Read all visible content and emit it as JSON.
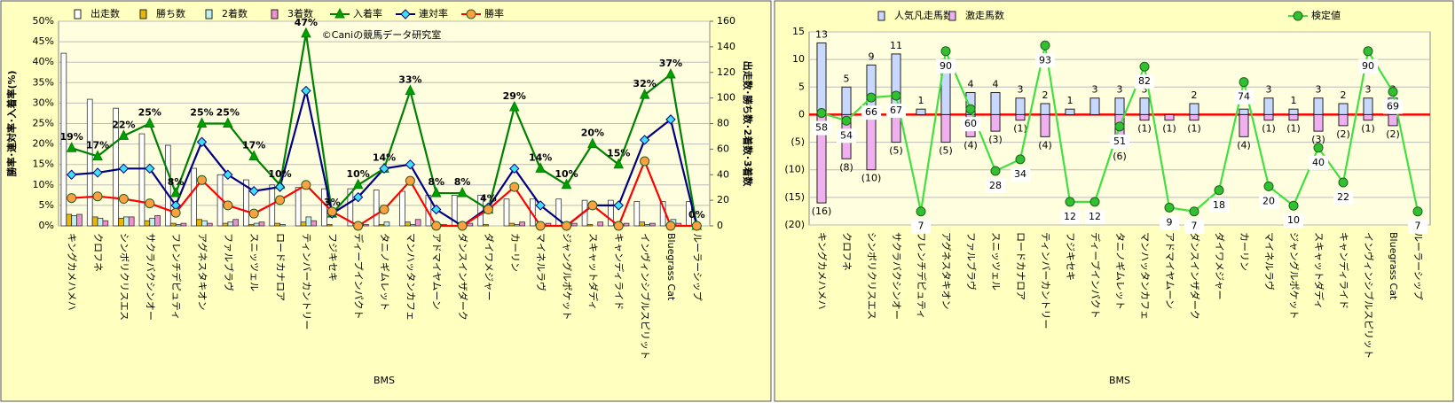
{
  "chart_data": [
    {
      "type": "combo",
      "watermark": "©Caniの競馬データ研究室",
      "x_label": "BMS",
      "y_label": "勝率･連対率･入着率(%)",
      "y2_label": "出走数･勝ち数･2着数･3着数",
      "categories": [
        "キングカメハメハ",
        "クロフネ",
        "シンボリクリスエス",
        "サクラバクシンオー",
        "フレンチデピュティ",
        "アグネスタキオン",
        "ファルブラヴ",
        "スニッツェル",
        "ロードカナロア",
        "ティンバーカントリー",
        "フジキセキ",
        "ディープインパクト",
        "タニノギムレット",
        "マンハッタンカフェ",
        "アドマイヤムーン",
        "ダンスインザダーク",
        "ダイワメジャー",
        "カーリン",
        "マイネルラヴ",
        "ジャングルポケット",
        "スキャットダディ",
        "キャンディライド",
        "インヴィンシブルスピリット",
        "Bluegrass Cat",
        "ルーラーシップ"
      ],
      "ylim": [
        0,
        50
      ],
      "yticks": [
        {
          "value": 0,
          "label": "0%"
        },
        {
          "value": 5,
          "label": "5%"
        },
        {
          "value": 10,
          "label": "10%"
        },
        {
          "value": 15,
          "label": "15%"
        },
        {
          "value": 20,
          "label": "20%"
        },
        {
          "value": 25,
          "label": "25%"
        },
        {
          "value": 30,
          "label": "30%"
        },
        {
          "value": 35,
          "label": "35%"
        },
        {
          "value": 40,
          "label": "40%"
        },
        {
          "value": 45,
          "label": "45%"
        },
        {
          "value": 50,
          "label": "50%"
        }
      ],
      "y2lim": [
        0,
        160
      ],
      "y2ticks": [
        0,
        20,
        40,
        60,
        80,
        100,
        120,
        140,
        160
      ],
      "grid": true,
      "barmode": "group",
      "series": [
        {
          "name": "出走数",
          "kind": "bar",
          "axis": "y2",
          "color": "#ffffff",
          "values": [
            135,
            99,
            92,
            72,
            63,
            45,
            40,
            36,
            32,
            30,
            29,
            29,
            28,
            27,
            24,
            24,
            24,
            21,
            21,
            21,
            20,
            20,
            19,
            19,
            19
          ]
        },
        {
          "name": "勝ち数",
          "kind": "bar",
          "axis": "y2",
          "color": "#e8b800",
          "values": [
            9,
            7,
            6,
            4,
            2,
            5,
            2,
            1,
            2,
            3,
            1,
            0,
            1,
            3,
            0,
            0,
            1,
            2,
            0,
            0,
            1,
            0,
            3,
            0,
            0
          ]
        },
        {
          "name": "2着数",
          "kind": "bar",
          "axis": "y2",
          "color": "#c0f0f0",
          "values": [
            8,
            6,
            7,
            6,
            1,
            4,
            3,
            2,
            1,
            7,
            0,
            2,
            3,
            1,
            1,
            0,
            0,
            1,
            1,
            0,
            0,
            1,
            1,
            5,
            0
          ]
        },
        {
          "name": "3着数",
          "kind": "bar",
          "axis": "y2",
          "color": "#f090d0",
          "values": [
            9,
            4,
            7,
            8,
            2,
            2,
            5,
            3,
            0,
            4,
            0,
            1,
            0,
            5,
            1,
            2,
            0,
            3,
            2,
            2,
            3,
            2,
            2,
            2,
            0
          ]
        },
        {
          "name": "入着率",
          "kind": "line",
          "marker": "triangle",
          "color": "#008000",
          "marker_color": "#00a000",
          "values": [
            19,
            17,
            22,
            25,
            8,
            25,
            25,
            17,
            10,
            47,
            3,
            10,
            14,
            33,
            8,
            8,
            4,
            29,
            14,
            10,
            20,
            15,
            32,
            37,
            0
          ],
          "value_labels": [
            "19%",
            "17%",
            "22%",
            "25%",
            "8%",
            "25%",
            "25%",
            "17%",
            "10%",
            "47%",
            "3%",
            "10%",
            "14%",
            "33%",
            "8%",
            "8%",
            "4%",
            "29%",
            "14%",
            "10%",
            "20%",
            "15%",
            "32%",
            "37%",
            "0%"
          ]
        },
        {
          "name": "連対率",
          "kind": "line",
          "marker": "diamond",
          "color": "#000080",
          "marker_color": "#40e0f0",
          "values": [
            12.5,
            13,
            14,
            14,
            5,
            20.5,
            12.5,
            8.5,
            9.5,
            33,
            3,
            7,
            14,
            15,
            4,
            0,
            4.5,
            14,
            5,
            0,
            5,
            5,
            21,
            26,
            0
          ]
        },
        {
          "name": "勝率",
          "kind": "line",
          "marker": "circle",
          "color": "#ff0000",
          "marker_color": "#ffa040",
          "values": [
            6.8,
            7.2,
            6.6,
            5.5,
            3.2,
            11.2,
            5,
            3,
            6.3,
            10,
            3.5,
            0,
            4,
            11,
            0,
            0,
            4,
            9.5,
            0,
            0,
            5,
            0,
            15.8,
            0,
            0
          ]
        }
      ]
    },
    {
      "type": "combo",
      "x_label": "BMS",
      "categories": [
        "キングカメハメハ",
        "クロフネ",
        "シンボリクリスエス",
        "サクラバクシンオー",
        "フレンチデピュティ",
        "アグネスタキオン",
        "ファルブラヴ",
        "スニッツェル",
        "ロードカナロア",
        "ティンバーカントリー",
        "フジキセキ",
        "ディープインパクト",
        "タニノギムレット",
        "マンハッタンカフェ",
        "アドマイヤムーン",
        "ダンスインザダーク",
        "ダイワメジャー",
        "カーリン",
        "マイネルラヴ",
        "ジャングルポケット",
        "スキャットダディ",
        "キャンディライド",
        "インヴィンシブルスピリット",
        "Bluegrass Cat",
        "ルーラーシップ"
      ],
      "ylim": [
        -20,
        15
      ],
      "yticks": [
        {
          "value": -20,
          "label": "(20)"
        },
        {
          "value": -15,
          "label": "(15)"
        },
        {
          "value": -10,
          "label": "(10)"
        },
        {
          "value": -5,
          "label": "(5)"
        },
        0,
        5,
        10,
        15
      ],
      "y2lim": [
        0,
        100
      ],
      "zero_line_color": "#ff0000",
      "grid": true,
      "barmode": "overlay",
      "series": [
        {
          "name": "人気凡走馬数",
          "kind": "bar",
          "color": "#c8d8ff",
          "label_color": "#000000",
          "values": [
            13,
            5,
            9,
            11,
            1,
            10,
            4,
            4,
            3,
            2,
            1,
            3,
            3,
            3,
            0,
            2,
            0,
            1,
            3,
            1,
            3,
            2,
            3,
            3,
            0
          ],
          "value_labels": [
            "13",
            "5",
            "9",
            "11",
            "1",
            null,
            "4",
            "4",
            "3",
            "2",
            "1",
            "3",
            "3",
            "3",
            null,
            "2",
            null,
            null,
            "3",
            "1",
            "3",
            "2",
            "3",
            "3",
            null
          ]
        },
        {
          "name": "激走馬数",
          "kind": "bar",
          "color": "#f0b0f0",
          "label_color": "#e00000",
          "values": [
            -16,
            -8,
            -10,
            -5,
            0,
            -5,
            -4,
            -3,
            -1,
            -4,
            0,
            0,
            -6,
            -1,
            -1,
            -1,
            0,
            -4,
            -1,
            -1,
            -3,
            -2,
            -1,
            -2,
            0
          ],
          "value_labels": [
            "(16)",
            "(8)",
            "(10)",
            "(5)",
            null,
            "(5)",
            "(4)",
            "(3)",
            "(1)",
            "(4)",
            null,
            null,
            "(6)",
            "(1)",
            "(1)",
            "(1)",
            null,
            "(4)",
            "(1)",
            "(1)",
            "(3)",
            "(2)",
            "(1)",
            "(2)",
            null
          ]
        },
        {
          "name": "検定値",
          "kind": "line",
          "axis": "y2",
          "marker": "circle",
          "color": "#40e040",
          "marker_color": "#30c030",
          "label_color": "#008080",
          "boxed_labels": true,
          "values": [
            58,
            54,
            66,
            67,
            7,
            90,
            60,
            28,
            34,
            93,
            12,
            12,
            51,
            82,
            9,
            7,
            18,
            74,
            20,
            10,
            40,
            22,
            90,
            69,
            7
          ],
          "value_labels": [
            "58",
            "54",
            "66",
            "67",
            "7",
            "90",
            "60",
            "28",
            "34",
            "93",
            "12",
            "12",
            "51",
            "82",
            "9",
            "7",
            "18",
            "74",
            "20",
            "10",
            "40",
            "22",
            "90",
            "69",
            "7"
          ]
        }
      ]
    }
  ]
}
